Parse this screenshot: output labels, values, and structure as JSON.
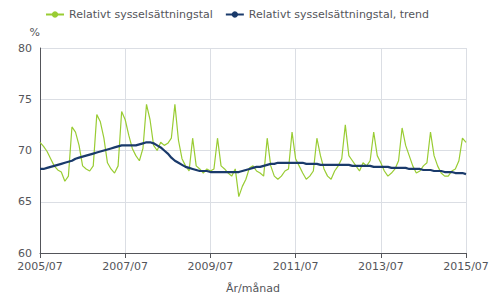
{
  "chart_data": {
    "type": "line",
    "xlabel": "År/månad",
    "ylabel": "%",
    "categories": [
      "2005/07",
      null,
      null,
      null,
      null,
      null,
      null,
      null,
      null,
      null,
      null,
      null,
      null,
      null,
      null,
      null,
      null,
      null,
      null,
      null,
      null,
      null,
      null,
      null,
      "2007/07",
      null,
      null,
      null,
      null,
      null,
      null,
      null,
      null,
      null,
      null,
      null,
      null,
      null,
      null,
      null,
      null,
      null,
      null,
      null,
      null,
      null,
      null,
      null,
      "2009/07",
      null,
      null,
      null,
      null,
      null,
      null,
      null,
      null,
      null,
      null,
      null,
      null,
      null,
      null,
      null,
      null,
      null,
      null,
      null,
      null,
      null,
      null,
      null,
      "2011/07",
      null,
      null,
      null,
      null,
      null,
      null,
      null,
      null,
      null,
      null,
      null,
      null,
      null,
      null,
      null,
      null,
      null,
      null,
      null,
      null,
      null,
      null,
      null,
      "2013/07",
      null,
      null,
      null,
      null,
      null,
      null,
      null,
      null,
      null,
      null,
      null,
      null,
      null,
      null,
      null,
      null,
      null,
      null,
      null,
      null,
      null,
      null,
      null,
      "2015/07"
    ],
    "series": [
      {
        "name": "Relativt sysselsättningstal",
        "color": "#99cc33",
        "values": [
          70.8,
          70.4,
          69.9,
          69.2,
          68.5,
          68.1,
          67.9,
          67.0,
          67.5,
          72.3,
          71.8,
          70.5,
          68.5,
          68.2,
          68.0,
          68.5,
          73.5,
          72.8,
          71.2,
          68.8,
          68.2,
          67.8,
          68.5,
          73.8,
          73.0,
          71.5,
          70.2,
          69.5,
          69.0,
          70.2,
          74.5,
          73.0,
          70.5,
          70.0,
          70.8,
          70.5,
          70.7,
          71.2,
          74.5,
          71.0,
          69.2,
          68.5,
          68.0,
          71.2,
          68.5,
          68.2,
          67.8,
          68.2,
          68.0,
          68.2,
          71.2,
          68.5,
          68.2,
          67.8,
          67.5,
          68.2,
          65.5,
          66.5,
          67.2,
          68.3,
          68.5,
          68.0,
          67.8,
          67.5,
          71.2,
          68.5,
          67.5,
          67.2,
          67.5,
          68.0,
          68.2,
          71.8,
          69.2,
          68.5,
          67.8,
          67.2,
          67.5,
          68.0,
          71.2,
          69.5,
          68.2,
          67.5,
          67.2,
          68.0,
          68.5,
          69.2,
          72.5,
          69.5,
          69.0,
          68.5,
          68.0,
          68.8,
          68.5,
          69.0,
          71.8,
          69.5,
          68.8,
          68.0,
          67.5,
          67.8,
          68.2,
          69.0,
          72.2,
          70.5,
          69.5,
          68.5,
          67.8,
          68.0,
          68.5,
          68.8,
          71.8,
          69.5,
          68.5,
          67.8,
          67.5,
          67.5,
          68.0,
          68.2,
          69.0,
          71.2,
          70.8
        ]
      },
      {
        "name": "Relativt sysselsättningstal, trend",
        "color": "#1a3a6b",
        "values": [
          68.2,
          68.2,
          68.3,
          68.4,
          68.5,
          68.6,
          68.7,
          68.8,
          68.9,
          69.0,
          69.2,
          69.3,
          69.4,
          69.5,
          69.6,
          69.7,
          69.8,
          69.9,
          70.0,
          70.1,
          70.2,
          70.3,
          70.4,
          70.5,
          70.5,
          70.5,
          70.5,
          70.5,
          70.6,
          70.7,
          70.8,
          70.8,
          70.7,
          70.5,
          70.3,
          70.0,
          69.7,
          69.3,
          69.0,
          68.8,
          68.6,
          68.4,
          68.3,
          68.2,
          68.1,
          68.0,
          68.0,
          68.0,
          67.9,
          67.9,
          67.9,
          67.9,
          67.9,
          67.9,
          67.9,
          67.9,
          67.9,
          68.0,
          68.1,
          68.2,
          68.3,
          68.4,
          68.4,
          68.5,
          68.6,
          68.7,
          68.7,
          68.8,
          68.8,
          68.8,
          68.8,
          68.8,
          68.8,
          68.8,
          68.8,
          68.7,
          68.7,
          68.7,
          68.7,
          68.6,
          68.6,
          68.6,
          68.6,
          68.6,
          68.6,
          68.6,
          68.6,
          68.6,
          68.5,
          68.5,
          68.5,
          68.5,
          68.5,
          68.5,
          68.4,
          68.4,
          68.4,
          68.4,
          68.4,
          68.3,
          68.3,
          68.3,
          68.3,
          68.3,
          68.2,
          68.2,
          68.2,
          68.2,
          68.1,
          68.1,
          68.1,
          68.0,
          68.0,
          68.0,
          67.9,
          67.9,
          67.9,
          67.8,
          67.8,
          67.8,
          67.7
        ]
      }
    ],
    "ylim": [
      60,
      80
    ],
    "yticks": [
      60,
      65,
      70,
      75,
      80
    ],
    "grid": true,
    "legend": "upper left"
  }
}
